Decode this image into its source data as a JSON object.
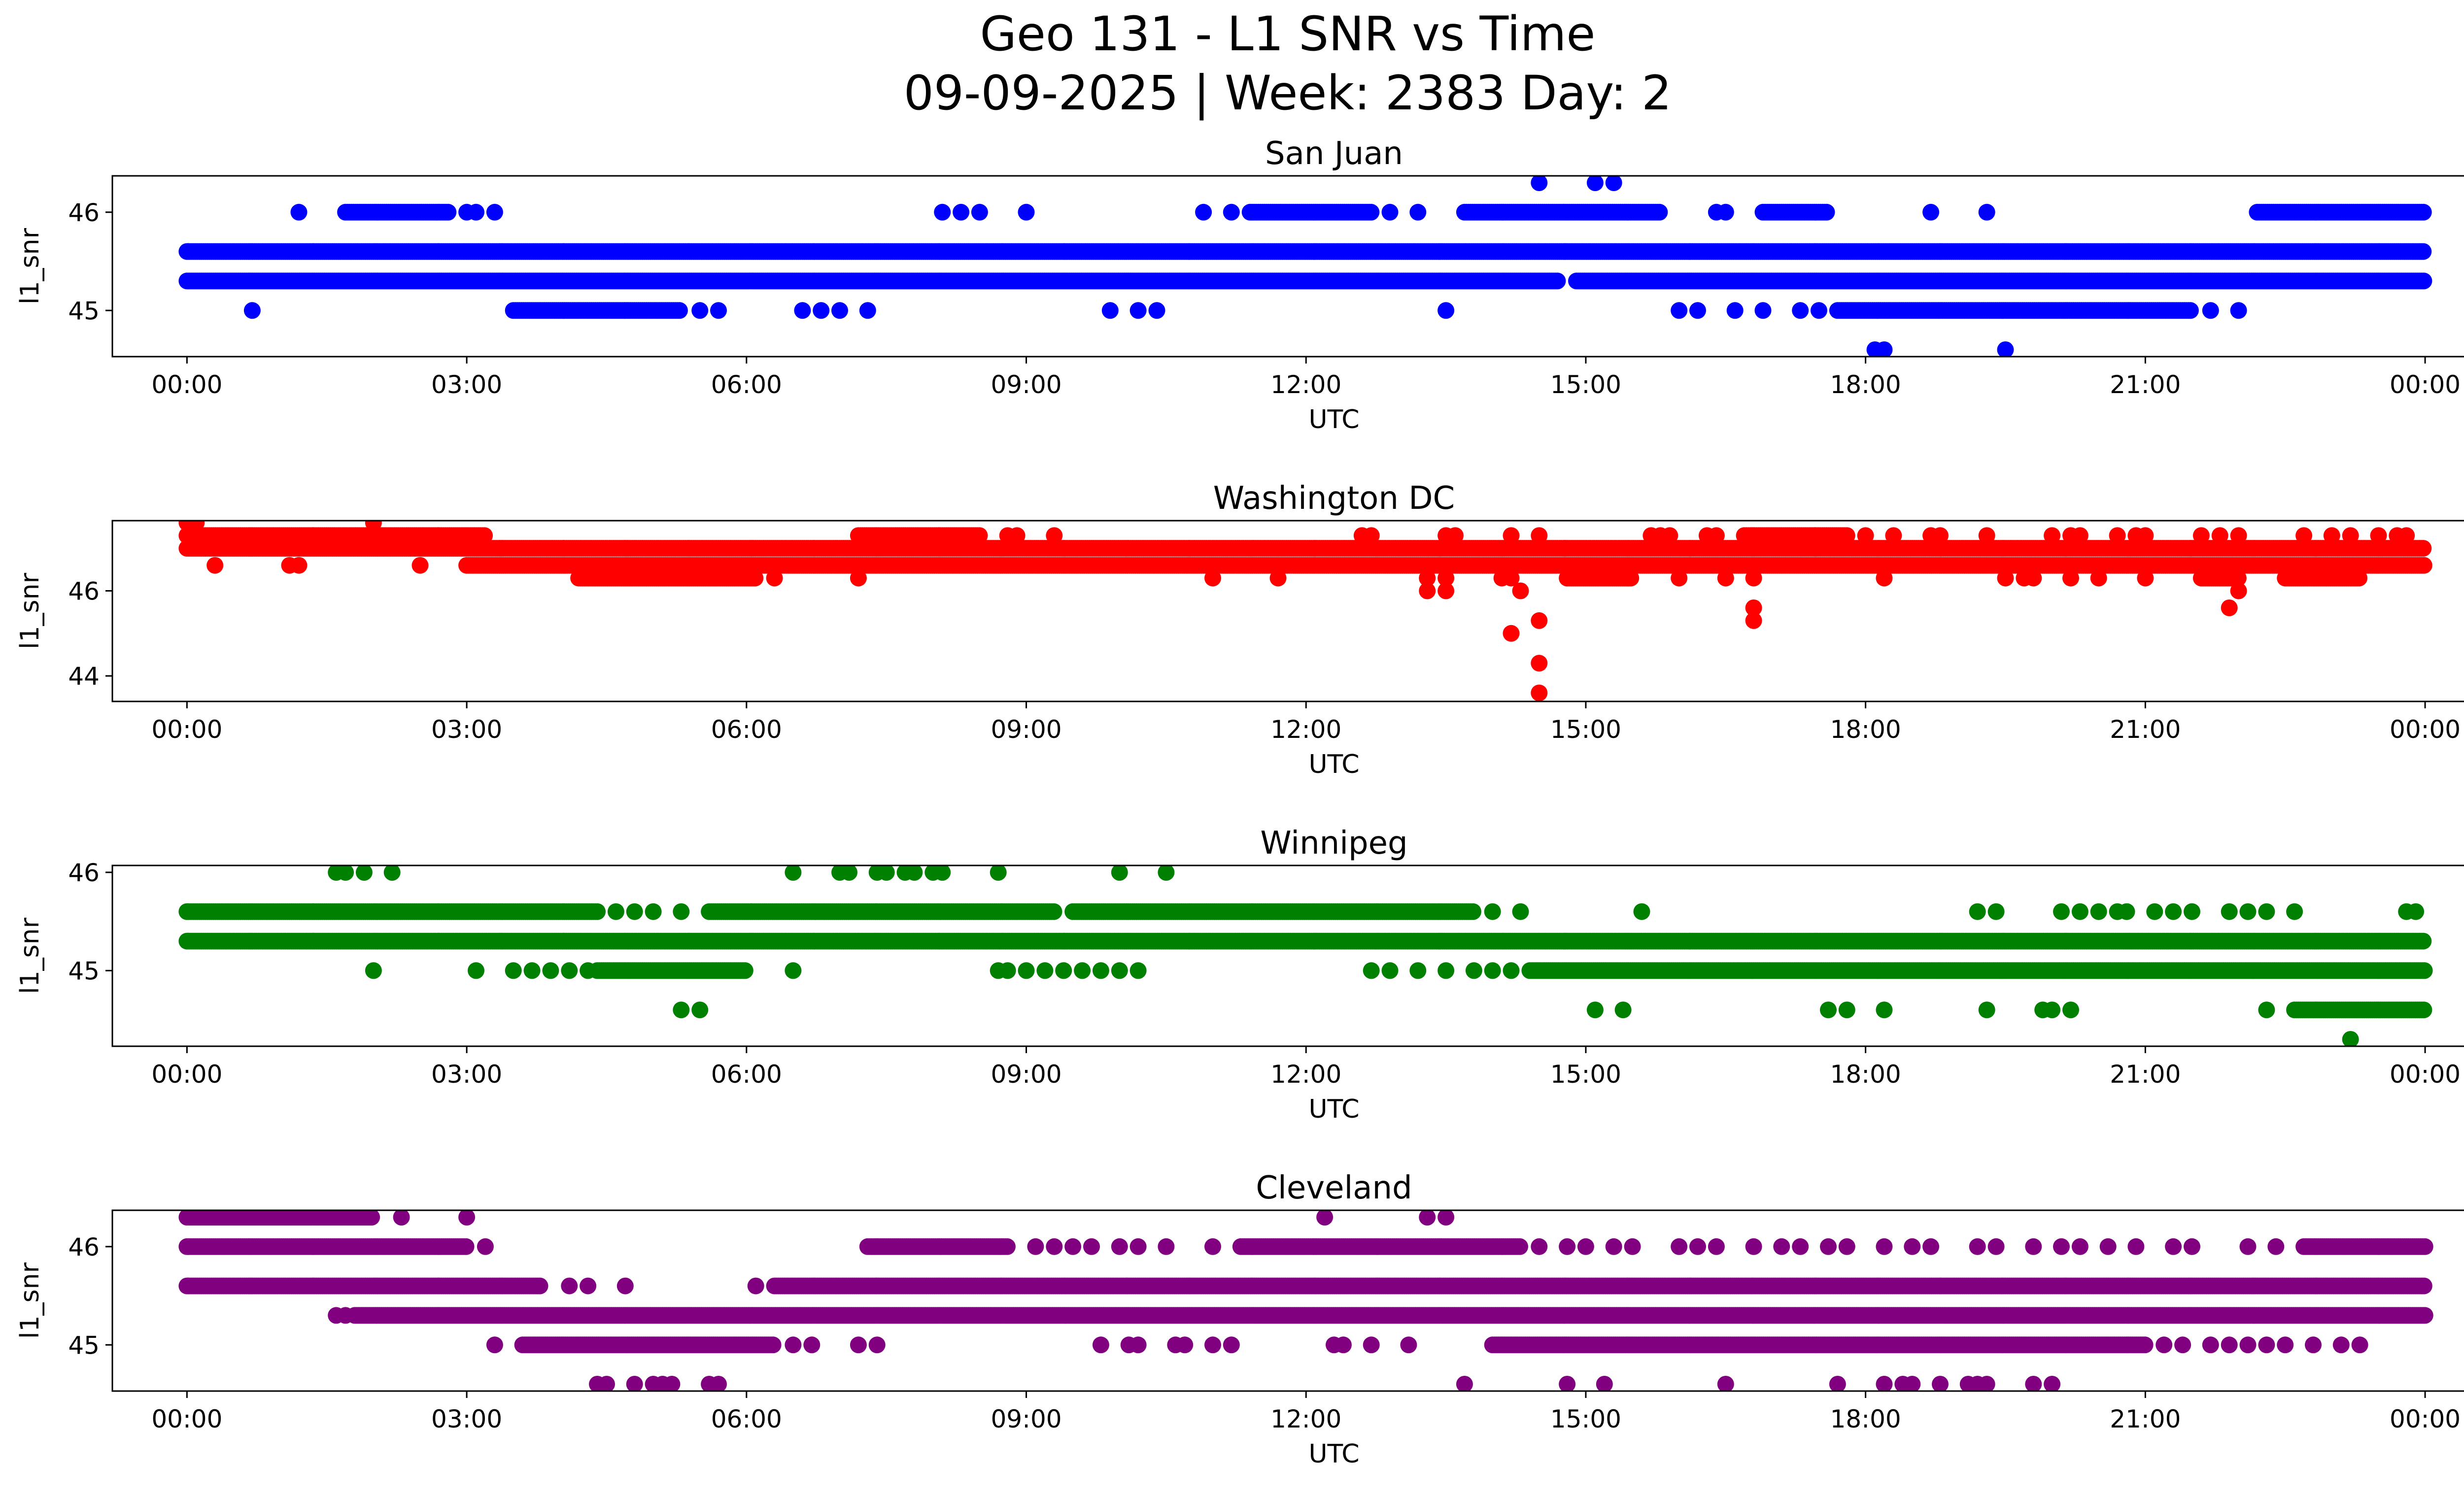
{
  "figure": {
    "title_line1": "Geo 131 - L1 SNR vs Time",
    "title_line2": "09-09-2025 | Week: 2383 Day: 2"
  },
  "chart_data": [
    {
      "type": "scatter",
      "title": "San Juan",
      "xlabel": "UTC",
      "ylabel": "l1_snr",
      "color": "#0000ff",
      "xlim": [
        -0.8,
        25.4
      ],
      "ylim": [
        44.53,
        46.37
      ],
      "x_ticks": [
        0,
        3,
        6,
        9,
        12,
        15,
        18,
        21,
        24
      ],
      "x_tick_labels": [
        "00:00",
        "03:00",
        "06:00",
        "09:00",
        "12:00",
        "15:00",
        "18:00",
        "21:00",
        "00:00"
      ],
      "y_ticks": [
        45,
        46
      ],
      "y_tick_labels": [
        "45",
        "46"
      ],
      "series": [
        {
          "name": "45.6",
          "y": 45.6,
          "segments": [
            [
              0,
              24
            ]
          ],
          "points": []
        },
        {
          "name": "45.3",
          "y": 45.3,
          "segments": [
            [
              0,
              14.7
            ],
            [
              14.9,
              24
            ]
          ],
          "points": []
        },
        {
          "name": "46.0",
          "y": 46.0,
          "segments": [
            [
              1.7,
              2.8
            ],
            [
              11.4,
              12.7
            ],
            [
              13.7,
              15.8
            ],
            [
              16.9,
              17.6
            ],
            [
              22.2,
              24
            ]
          ],
          "points": [
            1.2,
            3.0,
            3.1,
            3.3,
            8.1,
            8.3,
            8.5,
            9.0,
            10.9,
            11.2,
            12.9,
            13.2,
            16.4,
            16.5,
            18.7,
            19.3
          ]
        },
        {
          "name": "45.0",
          "y": 45.0,
          "segments": [
            [
              3.5,
              5.3
            ],
            [
              17.7,
              21.5
            ]
          ],
          "points": [
            0.7,
            5.5,
            5.7,
            6.6,
            6.8,
            7.0,
            7.3,
            9.9,
            10.2,
            10.4,
            13.5,
            16.0,
            16.2,
            16.6,
            16.9,
            17.3,
            17.5,
            21.7,
            22.0
          ]
        },
        {
          "name": "46.3",
          "y": 46.3,
          "segments": [],
          "points": [
            14.5,
            15.1,
            15.3
          ]
        },
        {
          "name": "44.6",
          "y": 44.6,
          "segments": [],
          "points": [
            18.1,
            18.2,
            19.5
          ]
        }
      ]
    },
    {
      "type": "scatter",
      "title": "Washington DC",
      "xlabel": "UTC",
      "ylabel": "l1_snr",
      "color": "#ff0000",
      "xlim": [
        -0.8,
        25.4
      ],
      "ylim": [
        43.4,
        47.65
      ],
      "x_ticks": [
        0,
        3,
        6,
        9,
        12,
        15,
        18,
        21,
        24
      ],
      "x_tick_labels": [
        "00:00",
        "03:00",
        "06:00",
        "09:00",
        "12:00",
        "15:00",
        "18:00",
        "21:00",
        "00:00"
      ],
      "y_ticks": [
        44,
        46
      ],
      "y_tick_labels": [
        "44",
        "46"
      ],
      "series": [
        {
          "name": "47.0",
          "y": 47.0,
          "segments": [
            [
              0,
              24
            ]
          ],
          "points": []
        },
        {
          "name": "47.3",
          "y": 47.3,
          "segments": [
            [
              0,
              3.2
            ],
            [
              7.2,
              8.5
            ],
            [
              16.7,
              17.8
            ]
          ],
          "points": [
            8.8,
            8.9,
            9.3,
            12.6,
            12.7,
            13.5,
            13.6,
            14.2,
            14.5,
            15.7,
            15.8,
            15.9,
            16.3,
            16.4,
            18.0,
            18.3,
            18.7,
            18.8,
            19.3,
            20.0,
            20.2,
            20.3,
            20.7,
            20.9,
            21.0,
            21.6,
            21.8,
            22.0,
            22.7,
            23.0,
            23.2,
            23.5,
            23.7,
            23.8
          ]
        },
        {
          "name": "46.6",
          "y": 46.6,
          "segments": [
            [
              3.0,
              24
            ]
          ],
          "points": [
            0.3,
            1.1,
            1.2,
            2.5
          ]
        },
        {
          "name": "46.3",
          "y": 46.3,
          "segments": [
            [
              4.2,
              6.1
            ],
            [
              14.8,
              15.5
            ],
            [
              21.6,
              22.0
            ],
            [
              22.5,
              23.3
            ]
          ],
          "points": [
            6.3,
            7.2,
            11.0,
            11.7,
            13.3,
            13.5,
            14.1,
            14.2,
            16.0,
            16.5,
            16.8,
            18.2,
            19.5,
            19.7,
            19.8,
            20.2,
            20.5,
            21.0
          ]
        },
        {
          "name": "47.6",
          "y": 47.6,
          "segments": [],
          "points": [
            0.0,
            0.1,
            2.0
          ]
        },
        {
          "name": "46.0",
          "y": 46.0,
          "segments": [],
          "points": [
            13.3,
            13.5,
            14.3,
            22.0
          ]
        },
        {
          "name": "45.6",
          "y": 45.6,
          "segments": [],
          "points": [
            16.8,
            21.9
          ]
        },
        {
          "name": "45.3",
          "y": 45.3,
          "segments": [],
          "points": [
            14.5,
            16.8
          ]
        },
        {
          "name": "45.0",
          "y": 45.0,
          "segments": [],
          "points": [
            14.2
          ]
        },
        {
          "name": "44.3",
          "y": 44.3,
          "segments": [],
          "points": [
            14.5
          ]
        },
        {
          "name": "43.6",
          "y": 43.6,
          "segments": [],
          "points": [
            14.5
          ]
        }
      ]
    },
    {
      "type": "scatter",
      "title": "Winnipeg",
      "xlabel": "UTC",
      "ylabel": "l1_snr",
      "color": "#008000",
      "xlim": [
        -0.8,
        25.4
      ],
      "ylim": [
        44.23,
        46.07
      ],
      "x_ticks": [
        0,
        3,
        6,
        9,
        12,
        15,
        18,
        21,
        24
      ],
      "x_tick_labels": [
        "00:00",
        "03:00",
        "06:00",
        "09:00",
        "12:00",
        "15:00",
        "18:00",
        "21:00",
        "00:00"
      ],
      "y_ticks": [
        45,
        46
      ],
      "y_tick_labels": [
        "45",
        "46"
      ],
      "series": [
        {
          "name": "45.3",
          "y": 45.3,
          "segments": [
            [
              0,
              24
            ]
          ],
          "points": []
        },
        {
          "name": "45.6",
          "y": 45.6,
          "segments": [
            [
              0,
              4.4
            ],
            [
              5.6,
              9.3
            ],
            [
              9.5,
              13.8
            ]
          ],
          "points": [
            4.6,
            4.8,
            5.0,
            5.3,
            14.0,
            14.3,
            15.6,
            19.2,
            19.4,
            20.1,
            20.3,
            20.5,
            20.7,
            20.8,
            21.1,
            21.3,
            21.5,
            21.9,
            22.1,
            22.3,
            22.6,
            23.8,
            23.9
          ]
        },
        {
          "name": "45.0",
          "y": 45.0,
          "segments": [
            [
              4.4,
              6.0
            ],
            [
              14.4,
              24
            ]
          ],
          "points": [
            2.0,
            3.1,
            3.5,
            3.7,
            3.9,
            4.1,
            4.3,
            6.5,
            8.7,
            8.8,
            9.0,
            9.2,
            9.4,
            9.6,
            9.8,
            10.0,
            10.2,
            12.7,
            12.9,
            13.2,
            13.5,
            13.8,
            14.0,
            14.2
          ]
        },
        {
          "name": "46.0",
          "y": 46.0,
          "segments": [],
          "points": [
            1.6,
            1.7,
            1.9,
            2.2,
            6.5,
            7.0,
            7.1,
            7.4,
            7.5,
            7.7,
            7.8,
            8.0,
            8.1,
            8.7,
            10.0,
            10.5
          ]
        },
        {
          "name": "44.6",
          "y": 44.6,
          "segments": [
            [
              22.6,
              24
            ]
          ],
          "points": [
            5.3,
            5.5,
            15.1,
            15.4,
            17.6,
            17.8,
            18.2,
            19.3,
            19.9,
            20.0,
            20.2,
            22.3
          ]
        },
        {
          "name": "44.3",
          "y": 44.3,
          "segments": [],
          "points": [
            23.2
          ]
        }
      ]
    },
    {
      "type": "scatter",
      "title": "Cleveland",
      "xlabel": "UTC",
      "ylabel": "l1_snr",
      "color": "#800080",
      "xlim": [
        -0.8,
        25.4
      ],
      "ylim": [
        44.53,
        46.37
      ],
      "x_ticks": [
        0,
        3,
        6,
        9,
        12,
        15,
        18,
        21,
        24
      ],
      "x_tick_labels": [
        "00:00",
        "03:00",
        "06:00",
        "09:00",
        "12:00",
        "15:00",
        "18:00",
        "21:00",
        "00:00"
      ],
      "y_ticks": [
        45,
        46
      ],
      "y_tick_labels": [
        "45",
        "46"
      ],
      "series": [
        {
          "name": "45.6",
          "y": 45.6,
          "segments": [
            [
              0,
              3.8
            ],
            [
              6.3,
              24
            ]
          ],
          "points": [
            4.1,
            4.3,
            4.7,
            6.1
          ]
        },
        {
          "name": "45.3",
          "y": 45.3,
          "segments": [
            [
              1.8,
              24
            ]
          ],
          "points": [
            1.6,
            1.7
          ]
        },
        {
          "name": "46.0",
          "y": 46.0,
          "segments": [
            [
              0,
              3.0
            ],
            [
              7.3,
              8.8
            ],
            [
              11.3,
              14.3
            ],
            [
              22.7,
              24
            ]
          ],
          "points": [
            3.2,
            9.1,
            9.3,
            9.5,
            9.7,
            10.0,
            10.2,
            10.5,
            11.0,
            14.5,
            14.8,
            15.0,
            15.3,
            15.5,
            16.0,
            16.2,
            16.4,
            16.8,
            17.1,
            17.3,
            17.6,
            17.8,
            18.2,
            18.5,
            18.7,
            19.2,
            19.4,
            19.8,
            20.1,
            20.3,
            20.6,
            20.9,
            21.3,
            21.5,
            22.1,
            22.4
          ]
        },
        {
          "name": "45.0",
          "y": 45.0,
          "segments": [
            [
              3.6,
              6.3
            ],
            [
              14.0,
              21.0
            ]
          ],
          "points": [
            3.3,
            6.5,
            6.7,
            7.2,
            7.4,
            9.8,
            10.1,
            10.2,
            10.6,
            10.7,
            11.0,
            11.2,
            12.3,
            12.4,
            12.7,
            13.1,
            21.2,
            21.4,
            21.7,
            21.9,
            22.1,
            22.3,
            22.5,
            22.8,
            23.1,
            23.3
          ]
        },
        {
          "name": "46.3",
          "y": 46.3,
          "segments": [
            [
              0,
              2.0
            ]
          ],
          "points": [
            2.3,
            3.0,
            12.2,
            13.3,
            13.5
          ]
        },
        {
          "name": "44.6",
          "y": 44.6,
          "segments": [],
          "points": [
            4.4,
            4.5,
            4.8,
            5.0,
            5.1,
            5.2,
            5.6,
            5.7,
            13.7,
            14.8,
            15.2,
            16.5,
            17.7,
            18.2,
            18.4,
            18.5,
            18.8,
            19.1,
            19.2,
            19.3,
            19.8,
            20.0
          ]
        }
      ]
    }
  ]
}
